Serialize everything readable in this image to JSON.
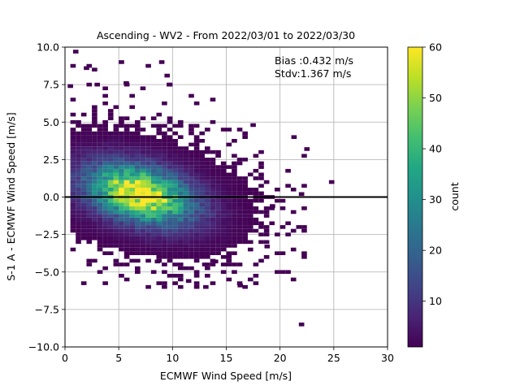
{
  "chart_data": {
    "type": "heatmap",
    "title": "Ascending - WV2 - From 2022/03/01 to 2022/03/30",
    "xlabel": "ECMWF Wind Speed [m/s]",
    "ylabel": "S-1 A - ECMWF Wind Speed [m/s]",
    "xlim": [
      0,
      30
    ],
    "ylim": [
      -10,
      10
    ],
    "xticks": [
      "0",
      "5",
      "10",
      "15",
      "20",
      "25",
      "30"
    ],
    "yticks": [
      "−10.0",
      "−7.5",
      "−5.0",
      "−2.5",
      "0.0",
      "2.5",
      "5.0",
      "7.5",
      "10.0"
    ],
    "grid": true,
    "reference_line_y": 0,
    "annotations": [
      "Bias :0.432 m/s",
      "Stdv:1.367 m/s"
    ],
    "colorbar": {
      "label": "count",
      "range": [
        1,
        60
      ],
      "ticks": [
        "10",
        "20",
        "30",
        "40",
        "50",
        "60"
      ],
      "colormap": "viridis"
    },
    "density_model": {
      "peak_x": 7,
      "peak_y": 0.2,
      "peak_count": 60,
      "spread_x": 3.2,
      "spread_y": 1.3,
      "correlation": -0.35,
      "x_range": [
        0.5,
        23
      ],
      "y_range": [
        -5,
        9.8
      ]
    },
    "outliers": [
      {
        "x": 1.0,
        "y": 9.7
      },
      {
        "x": 2.0,
        "y": 8.6
      },
      {
        "x": 0.5,
        "y": 7.4
      },
      {
        "x": 9.5,
        "y": 8.1
      },
      {
        "x": 9.0,
        "y": 9.0
      },
      {
        "x": 9.7,
        "y": 7.5
      },
      {
        "x": 3.0,
        "y": 7.5
      },
      {
        "x": 5.7,
        "y": 7.6
      },
      {
        "x": 17.5,
        "y": 4.8
      },
      {
        "x": 21.3,
        "y": 4.0
      },
      {
        "x": 22.5,
        "y": 3.2
      },
      {
        "x": 24.8,
        "y": 1.0
      },
      {
        "x": 22.0,
        "y": 0.2
      },
      {
        "x": 19.3,
        "y": -0.6
      },
      {
        "x": 14.0,
        "y": -4.3
      },
      {
        "x": 11.5,
        "y": -5.6
      },
      {
        "x": 13.1,
        "y": -6.0
      },
      {
        "x": 16.3,
        "y": -5.9
      },
      {
        "x": 22.0,
        "y": -8.5
      },
      {
        "x": 18.8,
        "y": -3.3
      },
      {
        "x": 8.6,
        "y": -4.3
      },
      {
        "x": 13.0,
        "y": -4.5
      }
    ]
  }
}
